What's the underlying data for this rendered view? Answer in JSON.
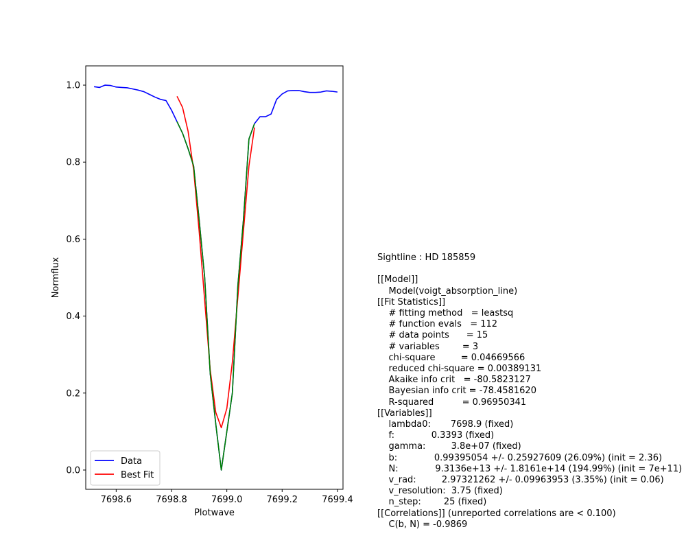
{
  "chart_data": {
    "type": "line",
    "xlabel": "Plotwave",
    "ylabel": "Normflux",
    "xlim": [
      7698.49,
      7699.42
    ],
    "ylim": [
      -0.05,
      1.05
    ],
    "xticks": [
      "7698.6",
      "7698.8",
      "7699.0",
      "7699.2",
      "7699.4"
    ],
    "yticks": [
      "0.0",
      "0.2",
      "0.4",
      "0.6",
      "0.8",
      "1.0"
    ],
    "grid": false,
    "legend_position": "lower-left",
    "series": [
      {
        "name": "Data",
        "color": "#0000ff",
        "x": [
          7698.52,
          7698.54,
          7698.56,
          7698.58,
          7698.6,
          7698.62,
          7698.64,
          7698.66,
          7698.68,
          7698.7,
          7698.72,
          7698.74,
          7698.76,
          7698.78,
          7698.8,
          7698.82,
          7698.84,
          7698.86,
          7698.88,
          7698.9,
          7698.92,
          7698.94,
          7698.96,
          7698.98,
          7699.0,
          7699.02,
          7699.04,
          7699.06,
          7699.08,
          7699.1,
          7699.12,
          7699.14,
          7699.16,
          7699.18,
          7699.2,
          7699.22,
          7699.24,
          7699.26,
          7699.28,
          7699.3,
          7699.32,
          7699.34,
          7699.36,
          7699.38,
          7699.4
        ],
        "y": [
          0.996,
          0.994,
          1.0,
          0.999,
          0.995,
          0.994,
          0.993,
          0.99,
          0.987,
          0.983,
          0.976,
          0.969,
          0.963,
          0.96,
          0.935,
          0.905,
          0.875,
          0.835,
          0.79,
          0.65,
          0.5,
          0.25,
          0.12,
          0.0,
          0.1,
          0.2,
          0.48,
          0.65,
          0.86,
          0.9,
          0.918,
          0.918,
          0.925,
          0.963,
          0.977,
          0.985,
          0.986,
          0.986,
          0.983,
          0.981,
          0.981,
          0.982,
          0.985,
          0.984,
          0.982
        ]
      },
      {
        "name": "Best Fit",
        "color": "#ff0000",
        "x": [
          7698.82,
          7698.84,
          7698.86,
          7698.88,
          7698.9,
          7698.92,
          7698.94,
          7698.96,
          7698.98,
          7699.0,
          7699.02,
          7699.04,
          7699.06,
          7699.08,
          7699.1
        ],
        "y": [
          0.971,
          0.942,
          0.88,
          0.78,
          0.62,
          0.44,
          0.26,
          0.15,
          0.11,
          0.16,
          0.28,
          0.45,
          0.62,
          0.79,
          0.89
        ]
      },
      {
        "name": "",
        "color": "#008000",
        "x": [
          7698.82,
          7698.84,
          7698.86,
          7698.88,
          7698.9,
          7698.92,
          7698.94,
          7698.96,
          7698.98,
          7699.0,
          7699.02,
          7699.04,
          7699.06,
          7699.08,
          7699.1
        ],
        "y": [
          0.905,
          0.875,
          0.835,
          0.79,
          0.65,
          0.5,
          0.25,
          0.12,
          0.0,
          0.1,
          0.2,
          0.48,
          0.65,
          0.86,
          0.9
        ]
      }
    ]
  },
  "report": {
    "lines": [
      "Sightline : HD 185859",
      "",
      "[[Model]]",
      "    Model(voigt_absorption_line)",
      "[[Fit Statistics]]",
      "    # fitting method   = leastsq",
      "    # function evals   = 112",
      "    # data points      = 15",
      "    # variables        = 3",
      "    chi-square         = 0.04669566",
      "    reduced chi-square = 0.00389131",
      "    Akaike info crit   = -80.5823127",
      "    Bayesian info crit = -78.4581620",
      "    R-squared          = 0.96950341",
      "[[Variables]]",
      "    lambda0:       7698.9 (fixed)",
      "    f:             0.3393 (fixed)",
      "    gamma:         3.8e+07 (fixed)",
      "    b:             0.99395054 +/- 0.25927609 (26.09%) (init = 2.36)",
      "    N:             9.3136e+13 +/- 1.8161e+14 (194.99%) (init = 7e+11)",
      "    v_rad:         2.97321262 +/- 0.09963953 (3.35%) (init = 0.06)",
      "    v_resolution:  3.75 (fixed)",
      "    n_step:        25 (fixed)",
      "[[Correlations]] (unreported correlations are < 0.100)",
      "    C(b, N) = -0.9869"
    ]
  }
}
